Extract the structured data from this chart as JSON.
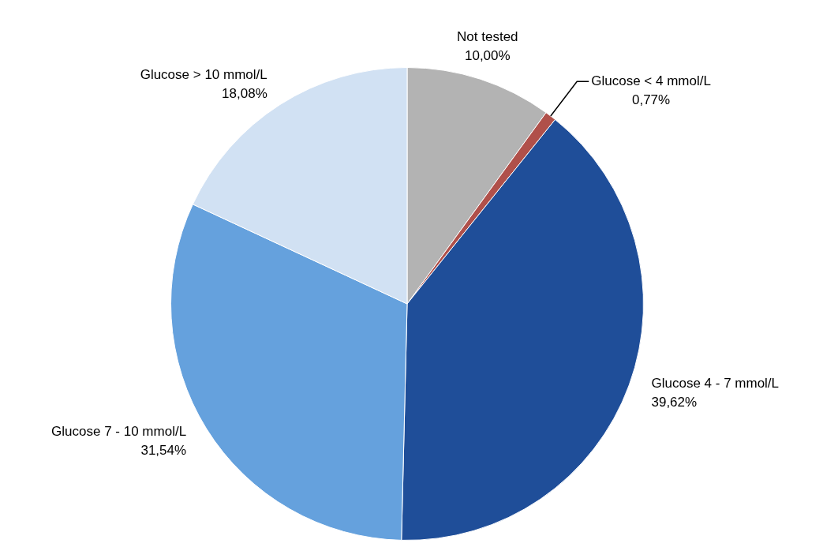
{
  "chart_data": {
    "type": "pie",
    "categories": [
      "Not tested",
      "Glucose < 4 mmol/L",
      "Glucose 4 - 7 mmol/L",
      "Glucose 7 - 10 mmol/L",
      "Glucose > 10 mmol/L"
    ],
    "values": [
      10.0,
      0.77,
      39.62,
      31.54,
      18.08
    ],
    "value_labels": [
      "10,00%",
      "0,77%",
      "39,62%",
      "31,54%",
      "18,08%"
    ],
    "colors": [
      "#b3b3b3",
      "#b0504a",
      "#1f4e99",
      "#65a1dd",
      "#d1e1f3"
    ],
    "legend": false
  }
}
